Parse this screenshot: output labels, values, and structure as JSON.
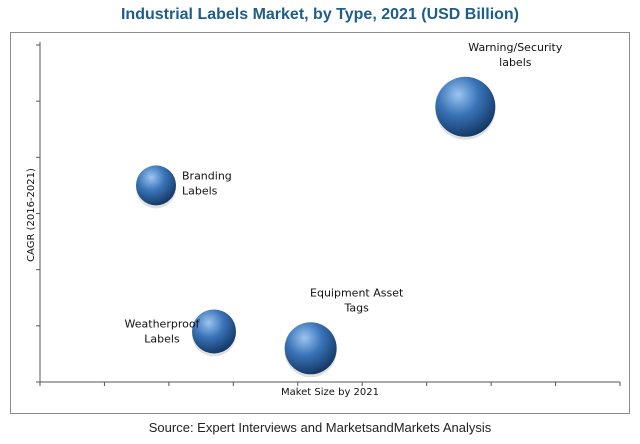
{
  "title": "Industrial Labels Market, by Type, 2021 (USD Billion)",
  "source": "Source: Expert Interviews and MarketsandMarkets Analysis",
  "colors": {
    "bubble": "#3a74b8",
    "bubble_light": "#9cc6f0",
    "bubble_dark": "#10335e",
    "title": "#1f5d8a",
    "axis": "#555555"
  },
  "chart_data": {
    "type": "scatter",
    "title": "Industrial Labels Market, by Type, 2021 (USD Billion)",
    "xlabel": "Maket Size by 2021",
    "ylabel": "CAGR (2016-2021)",
    "xlim": [
      0,
      9
    ],
    "ylim": [
      0,
      6
    ],
    "grid": false,
    "points": [
      {
        "label": [
          "Branding",
          "Labels"
        ],
        "x": 1.8,
        "y": 3.5,
        "size": 1.0,
        "label_side": "right"
      },
      {
        "label": [
          "Weatherproof",
          "Labels"
        ],
        "x": 2.7,
        "y": 0.9,
        "size": 1.1,
        "label_side": "left"
      },
      {
        "label": [
          "Equipment Asset",
          "Tags"
        ],
        "x": 4.2,
        "y": 0.6,
        "size": 1.3,
        "label_side": "above-right"
      },
      {
        "label": [
          "Warning/Security",
          "labels"
        ],
        "x": 6.6,
        "y": 4.9,
        "size": 1.5,
        "label_side": "above-right"
      }
    ]
  }
}
